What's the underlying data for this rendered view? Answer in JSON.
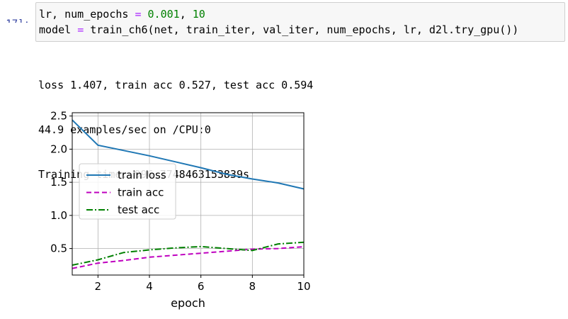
{
  "cell": {
    "prompt_number": "17]:",
    "line1": {
      "a": "lr, num_epochs ",
      "op": "=",
      "b": " ",
      "n1": "0.001",
      "c": ", ",
      "n2": "10"
    },
    "line2": {
      "a": "model ",
      "op": "=",
      "b": " train_ch6(net, train_iter, val_iter, num_epochs, lr, d2l.try_gpu())"
    }
  },
  "output": {
    "lines": [
      "loss 1.407, train acc 0.527, test acc 0.594",
      "44.9 examples/sec on /CPU:0",
      "Training time: 996.7748463153839s"
    ]
  },
  "chart_data": {
    "type": "line",
    "x": [
      1,
      2,
      3,
      4,
      5,
      6,
      7,
      8,
      9,
      10
    ],
    "xlabel": "epoch",
    "ylabel": "",
    "xlim": [
      1,
      10
    ],
    "ylim": [
      0.1,
      2.55
    ],
    "xticks": [
      2,
      4,
      6,
      8,
      10
    ],
    "yticks": [
      0.5,
      1.0,
      1.5,
      2.0,
      2.5
    ],
    "ytick_labels": [
      "0.5",
      "1.0",
      "1.5",
      "2.0",
      "2.5"
    ],
    "grid": true,
    "legend_position": "center-left",
    "series": [
      {
        "name": "train loss",
        "color": "#1f77b4",
        "style": "solid",
        "values": [
          2.44,
          2.06,
          1.98,
          1.9,
          1.81,
          1.72,
          1.62,
          1.55,
          1.49,
          1.4
        ]
      },
      {
        "name": "train acc",
        "color": "#bf00bf",
        "style": "dashed",
        "values": [
          0.2,
          0.28,
          0.32,
          0.37,
          0.4,
          0.43,
          0.46,
          0.49,
          0.5,
          0.527
        ]
      },
      {
        "name": "test acc",
        "color": "#008000",
        "style": "dashdot",
        "values": [
          0.25,
          0.33,
          0.44,
          0.48,
          0.51,
          0.53,
          0.5,
          0.47,
          0.57,
          0.594
        ]
      }
    ]
  }
}
